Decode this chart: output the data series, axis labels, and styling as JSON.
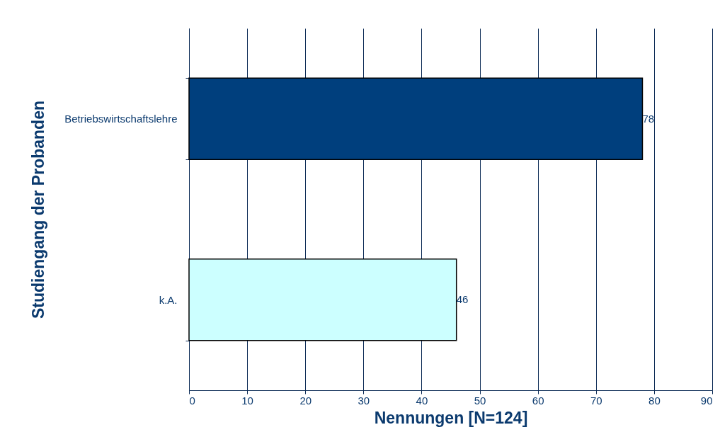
{
  "chart_data": {
    "type": "bar",
    "orientation": "horizontal",
    "xlabel": "Nennungen [N=124]",
    "ylabel": "Studiengang der Probanden",
    "categories": [
      "Betriebswirtschaftslehre",
      "k.A."
    ],
    "values": [
      78,
      46
    ],
    "colors": [
      "#003f7d",
      "#ccffff"
    ],
    "xlim": [
      0,
      90
    ],
    "xticks": [
      0,
      10,
      20,
      30,
      40,
      50,
      60,
      70,
      80,
      90
    ],
    "grid": "x",
    "data_labels": true
  }
}
